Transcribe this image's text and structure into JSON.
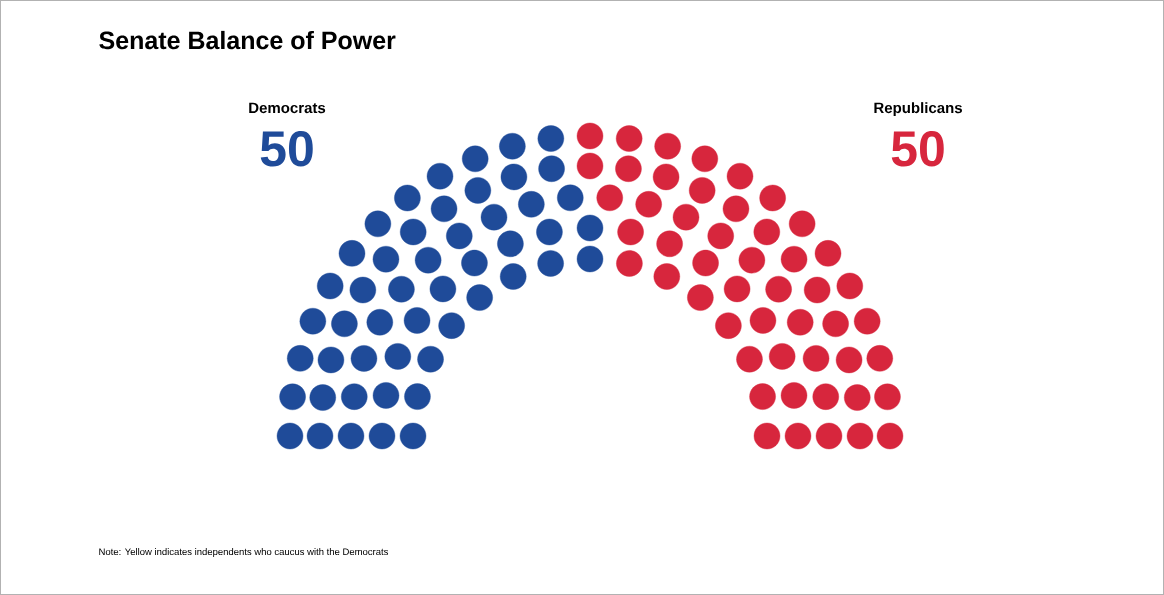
{
  "chart_data": {
    "type": "other",
    "title": "Senate Balance of Power",
    "categories": [
      "Democrats",
      "Republicans"
    ],
    "values": [
      50,
      50
    ],
    "colors": [
      "#1f4b99",
      "#d7263d"
    ],
    "data_labels": true,
    "annotations": [
      "Note: Yellow indicates independents who caucus with the Democrats"
    ]
  }
}
